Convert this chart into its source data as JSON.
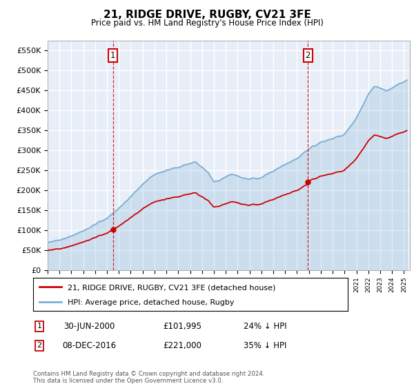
{
  "title": "21, RIDGE DRIVE, RUGBY, CV21 3FE",
  "subtitle": "Price paid vs. HM Land Registry's House Price Index (HPI)",
  "ylim": [
    0,
    575000
  ],
  "yticks": [
    0,
    50000,
    100000,
    150000,
    200000,
    250000,
    300000,
    350000,
    400000,
    450000,
    500000,
    550000
  ],
  "xlim_start": 1995.0,
  "xlim_end": 2025.5,
  "plot_bg": "#e8eef8",
  "grid_color": "#ffffff",
  "hpi_color": "#7bafd4",
  "price_color": "#cc0000",
  "marker1_date": 2000.5,
  "marker2_date": 2016.92,
  "sale1_price": 101995,
  "sale2_price": 221000,
  "sale1_label": "1",
  "sale2_label": "2",
  "legend_line1": "21, RIDGE DRIVE, RUGBY, CV21 3FE (detached house)",
  "legend_line2": "HPI: Average price, detached house, Rugby",
  "table_row1": [
    "1",
    "30-JUN-2000",
    "£101,995",
    "24% ↓ HPI"
  ],
  "table_row2": [
    "2",
    "08-DEC-2016",
    "£221,000",
    "35% ↓ HPI"
  ],
  "footnote": "Contains HM Land Registry data © Crown copyright and database right 2024.\nThis data is licensed under the Open Government Licence v3.0."
}
